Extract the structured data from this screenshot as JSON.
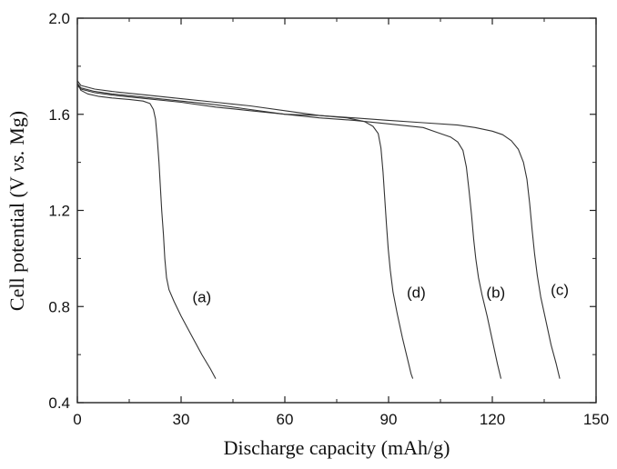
{
  "chart_data": {
    "type": "line",
    "xlabel": "Discharge capacity (mAh/g)",
    "ylabel_parts": {
      "prefix": "Cell potential (V ",
      "italic": "vs.",
      "suffix": " Mg)"
    },
    "xlim": [
      0,
      150
    ],
    "ylim": [
      0.4,
      2.0
    ],
    "x_ticks": [
      0,
      30,
      60,
      90,
      120,
      150
    ],
    "y_ticks": [
      0.4,
      0.8,
      1.2,
      1.6,
      2.0
    ],
    "x_tick_labels": [
      "0",
      "30",
      "60",
      "90",
      "120",
      "150"
    ],
    "y_tick_labels": [
      "0.4",
      "0.8",
      "1.2",
      "1.6",
      "2.0"
    ],
    "grid": false,
    "legend": "none",
    "line_color": "#333333",
    "series": [
      {
        "name": "(a)",
        "label_pos": [
          36,
          0.84
        ],
        "points": [
          [
            0,
            1.73
          ],
          [
            1,
            1.7
          ],
          [
            3,
            1.685
          ],
          [
            6,
            1.675
          ],
          [
            10,
            1.668
          ],
          [
            15,
            1.662
          ],
          [
            19,
            1.655
          ],
          [
            21,
            1.645
          ],
          [
            22,
            1.62
          ],
          [
            22.6,
            1.58
          ],
          [
            23.1,
            1.5
          ],
          [
            23.6,
            1.4
          ],
          [
            24.0,
            1.3
          ],
          [
            24.4,
            1.2
          ],
          [
            24.9,
            1.1
          ],
          [
            25.3,
            1.0
          ],
          [
            25.8,
            0.92
          ],
          [
            26.5,
            0.87
          ],
          [
            28,
            0.82
          ],
          [
            30,
            0.76
          ],
          [
            33,
            0.68
          ],
          [
            36,
            0.6
          ],
          [
            38.5,
            0.54
          ],
          [
            40,
            0.5
          ]
        ]
      },
      {
        "name": "(b)",
        "label_pos": [
          121,
          0.86
        ],
        "points": [
          [
            0,
            1.73
          ],
          [
            1,
            1.71
          ],
          [
            5,
            1.695
          ],
          [
            10,
            1.685
          ],
          [
            20,
            1.67
          ],
          [
            30,
            1.655
          ],
          [
            40,
            1.64
          ],
          [
            50,
            1.62
          ],
          [
            60,
            1.6
          ],
          [
            70,
            1.585
          ],
          [
            80,
            1.575
          ],
          [
            90,
            1.56
          ],
          [
            100,
            1.545
          ],
          [
            104,
            1.525
          ],
          [
            108,
            1.505
          ],
          [
            110,
            1.485
          ],
          [
            111.5,
            1.45
          ],
          [
            112.5,
            1.38
          ],
          [
            113.3,
            1.28
          ],
          [
            114.0,
            1.18
          ],
          [
            114.6,
            1.08
          ],
          [
            115.2,
            1.0
          ],
          [
            116,
            0.92
          ],
          [
            117,
            0.85
          ],
          [
            118.5,
            0.76
          ],
          [
            120,
            0.66
          ],
          [
            121.5,
            0.56
          ],
          [
            122.5,
            0.5
          ]
        ]
      },
      {
        "name": "(c)",
        "label_pos": [
          139.5,
          0.87
        ],
        "points": [
          [
            0,
            1.74
          ],
          [
            1,
            1.72
          ],
          [
            5,
            1.705
          ],
          [
            10,
            1.695
          ],
          [
            20,
            1.68
          ],
          [
            30,
            1.665
          ],
          [
            40,
            1.65
          ],
          [
            50,
            1.635
          ],
          [
            60,
            1.615
          ],
          [
            70,
            1.595
          ],
          [
            80,
            1.585
          ],
          [
            90,
            1.575
          ],
          [
            100,
            1.565
          ],
          [
            110,
            1.555
          ],
          [
            115,
            1.545
          ],
          [
            120,
            1.53
          ],
          [
            123,
            1.515
          ],
          [
            125.5,
            1.49
          ],
          [
            127.5,
            1.455
          ],
          [
            129,
            1.4
          ],
          [
            130,
            1.33
          ],
          [
            130.8,
            1.23
          ],
          [
            131.5,
            1.12
          ],
          [
            132.2,
            1.02
          ],
          [
            133,
            0.93
          ],
          [
            134,
            0.84
          ],
          [
            135.5,
            0.74
          ],
          [
            137,
            0.64
          ],
          [
            138.5,
            0.56
          ],
          [
            139.5,
            0.5
          ]
        ]
      },
      {
        "name": "(d)",
        "label_pos": [
          98,
          0.86
        ],
        "points": [
          [
            0,
            1.72
          ],
          [
            1,
            1.705
          ],
          [
            5,
            1.69
          ],
          [
            10,
            1.68
          ],
          [
            20,
            1.665
          ],
          [
            30,
            1.65
          ],
          [
            40,
            1.63
          ],
          [
            50,
            1.615
          ],
          [
            60,
            1.6
          ],
          [
            70,
            1.595
          ],
          [
            78,
            1.585
          ],
          [
            83,
            1.57
          ],
          [
            85.5,
            1.55
          ],
          [
            87,
            1.52
          ],
          [
            87.8,
            1.46
          ],
          [
            88.4,
            1.36
          ],
          [
            88.9,
            1.25
          ],
          [
            89.4,
            1.14
          ],
          [
            89.9,
            1.04
          ],
          [
            90.5,
            0.95
          ],
          [
            91.3,
            0.86
          ],
          [
            92.5,
            0.77
          ],
          [
            94,
            0.67
          ],
          [
            95.5,
            0.58
          ],
          [
            96.5,
            0.52
          ],
          [
            97,
            0.5
          ]
        ]
      }
    ]
  }
}
